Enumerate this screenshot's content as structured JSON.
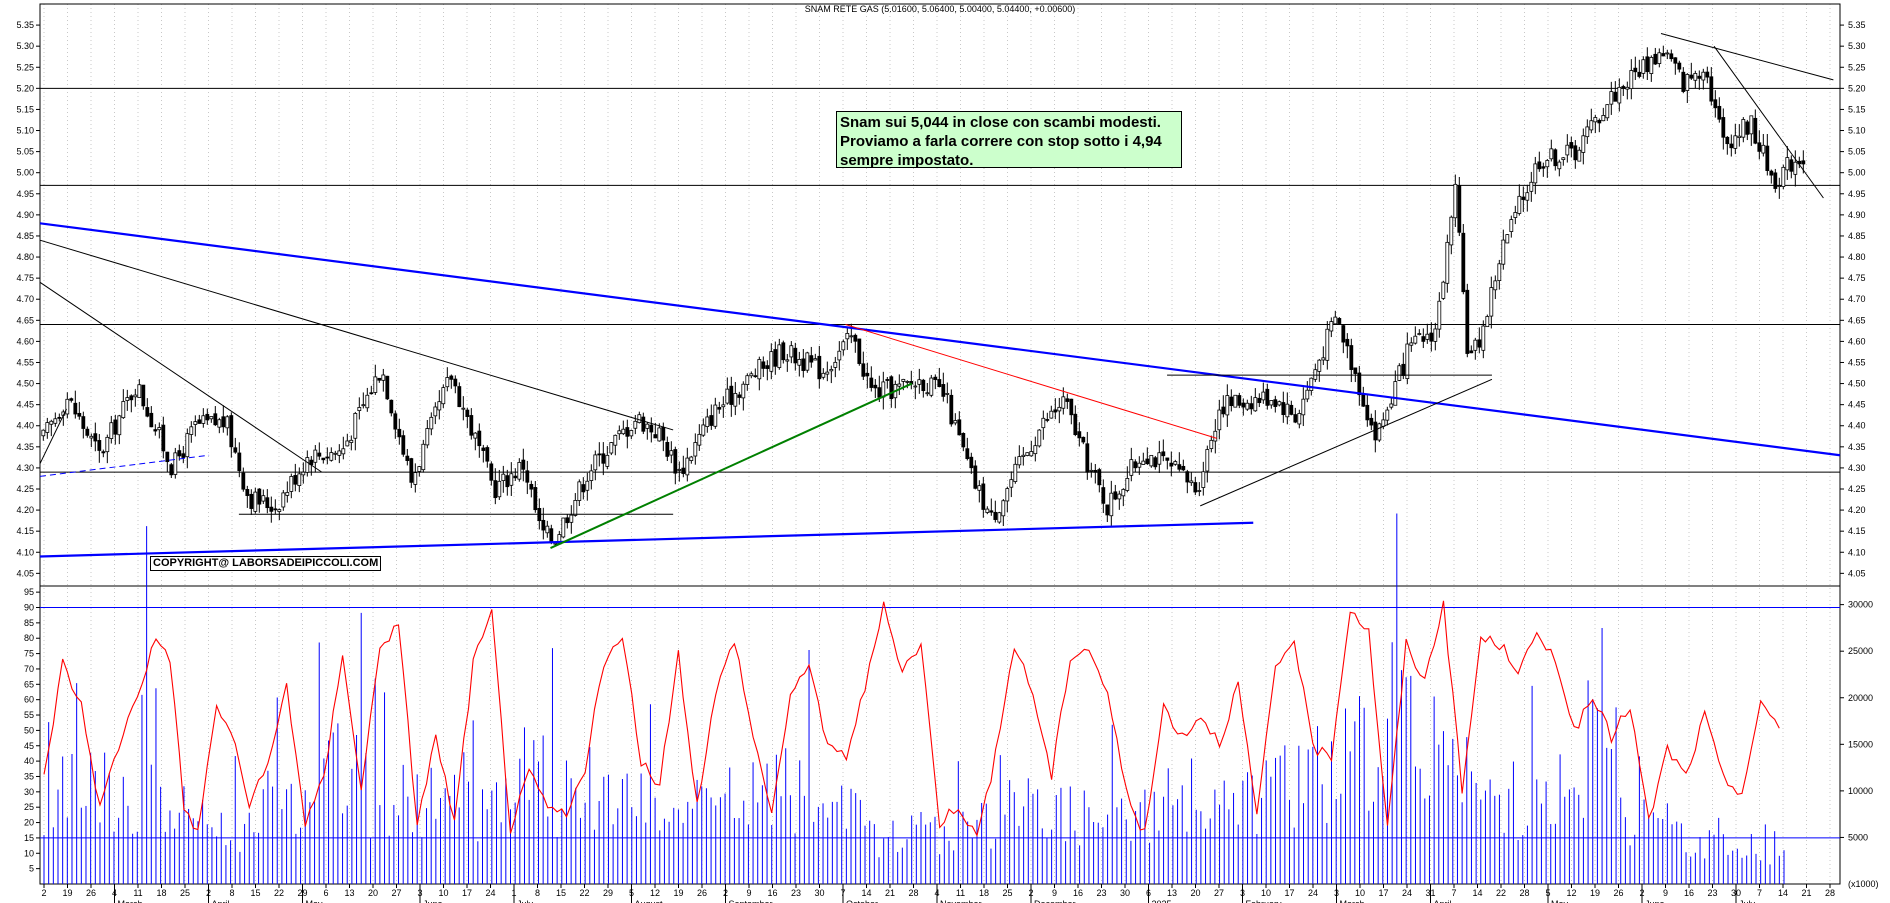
{
  "chart_data": [
    {
      "type": "candlestick",
      "title": "SNAM RETE GAS (5.01600, 5.06400, 5.00400, 5.04400, +0.00600)",
      "yticks": [
        "4.05",
        "4.10",
        "4.15",
        "4.20",
        "4.25",
        "4.30",
        "4.35",
        "4.40",
        "4.45",
        "4.50",
        "4.55",
        "4.60",
        "4.65",
        "4.70",
        "4.75",
        "4.80",
        "4.85",
        "4.90",
        "4.95",
        "5.00",
        "5.05",
        "5.10",
        "5.15",
        "5.20",
        "5.25",
        "5.30",
        "5.35"
      ],
      "ylim": [
        4.02,
        5.4
      ],
      "horizontal_levels": [
        5.2,
        4.97,
        4.64,
        4.29
      ],
      "annotation": [
        "Snam sui 5,044 in close con scambi modesti.",
        "Proviamo a farla correre con stop sotto i 4,94",
        "sempre impostato."
      ],
      "copyright": "COPYRIGHT@ LABORSADEIPICCOLI.COM",
      "price_path_anchors": [
        [
          "2024-02-02",
          4.37
        ],
        [
          "2024-02-09",
          4.47
        ],
        [
          "2024-02-19",
          4.33
        ],
        [
          "2024-03-01",
          4.5
        ],
        [
          "2024-03-12",
          4.3
        ],
        [
          "2024-03-19",
          4.4
        ],
        [
          "2024-03-28",
          4.41
        ],
        [
          "2024-04-04",
          4.23
        ],
        [
          "2024-04-12",
          4.21
        ],
        [
          "2024-04-22",
          4.33
        ],
        [
          "2024-05-02",
          4.34
        ],
        [
          "2024-05-14",
          4.54
        ],
        [
          "2024-05-23",
          4.27
        ],
        [
          "2024-06-04",
          4.52
        ],
        [
          "2024-06-17",
          4.25
        ],
        [
          "2024-06-26",
          4.31
        ],
        [
          "2024-07-01",
          4.15
        ],
        [
          "2024-07-05",
          4.13
        ],
        [
          "2024-07-16",
          4.3
        ],
        [
          "2024-07-30",
          4.42
        ],
        [
          "2024-08-06",
          4.38
        ],
        [
          "2024-08-12",
          4.29
        ],
        [
          "2024-08-22",
          4.43
        ],
        [
          "2024-09-03",
          4.52
        ],
        [
          "2024-09-12",
          4.58
        ],
        [
          "2024-09-24",
          4.53
        ],
        [
          "2024-10-03",
          4.61
        ],
        [
          "2024-10-09",
          4.48
        ],
        [
          "2024-10-18",
          4.49
        ],
        [
          "2024-10-24",
          4.51
        ],
        [
          "2024-10-31",
          4.47
        ],
        [
          "2024-11-08",
          4.28
        ],
        [
          "2024-11-14",
          4.18
        ],
        [
          "2024-11-20",
          4.27
        ],
        [
          "2024-11-29",
          4.4
        ],
        [
          "2024-12-06",
          4.46
        ],
        [
          "2024-12-13",
          4.31
        ],
        [
          "2024-12-19",
          4.21
        ],
        [
          "2024-12-30",
          4.34
        ],
        [
          "2025-01-09",
          4.29
        ],
        [
          "2025-01-15",
          4.25
        ],
        [
          "2025-01-22",
          4.45
        ],
        [
          "2025-01-30",
          4.46
        ],
        [
          "2025-02-07",
          4.47
        ],
        [
          "2025-02-14",
          4.42
        ],
        [
          "2025-02-26",
          4.66
        ],
        [
          "2025-03-04",
          4.52
        ],
        [
          "2025-03-10",
          4.37
        ],
        [
          "2025-03-20",
          4.58
        ],
        [
          "2025-03-28",
          4.63
        ],
        [
          "2025-04-03",
          4.95
        ],
        [
          "2025-04-07",
          4.55
        ],
        [
          "2025-04-11",
          4.62
        ],
        [
          "2025-04-17",
          4.82
        ],
        [
          "2025-04-28",
          5.03
        ],
        [
          "2025-05-09",
          5.05
        ],
        [
          "2025-05-20",
          5.18
        ],
        [
          "2025-05-29",
          5.25
        ],
        [
          "2025-06-05",
          5.29
        ],
        [
          "2025-06-11",
          5.21
        ],
        [
          "2025-06-17",
          5.26
        ],
        [
          "2025-06-23",
          5.07
        ],
        [
          "2025-07-01",
          5.12
        ],
        [
          "2025-07-08",
          4.98
        ],
        [
          "2025-07-14",
          5.03
        ],
        [
          "2025-07-17",
          5.04
        ]
      ],
      "trendlines": [
        {
          "color": "#0000ff",
          "from": [
            "2024-02-01",
            4.88
          ],
          "to": [
            "2025-07-28",
            4.33
          ]
        },
        {
          "color": "#0000ff",
          "from": [
            "2024-02-01",
            4.09
          ],
          "to": [
            "2025-02-01",
            4.17
          ]
        },
        {
          "color": "#000000",
          "from": [
            "2024-02-01",
            4.84
          ],
          "to": [
            "2024-08-10",
            4.39
          ]
        },
        {
          "color": "#000000",
          "from": [
            "2024-02-01",
            4.74
          ],
          "to": [
            "2024-04-26",
            4.29
          ]
        },
        {
          "color": "#000000",
          "from": [
            "2024-02-01",
            4.31
          ],
          "to": [
            "2024-02-09",
            4.44
          ]
        },
        {
          "color": "#0000ff",
          "dashed": true,
          "from": [
            "2024-02-01",
            4.28
          ],
          "to": [
            "2024-03-23",
            4.33
          ]
        },
        {
          "color": "#000000",
          "from": [
            "2024-04-01",
            4.19
          ],
          "to": [
            "2024-08-10",
            4.19
          ]
        },
        {
          "color": "#008000",
          "from": [
            "2024-07-04",
            4.11
          ],
          "to": [
            "2024-10-21",
            4.5
          ]
        },
        {
          "color": "#ff0000",
          "from": [
            "2024-10-01",
            4.64
          ],
          "to": [
            "2025-01-21",
            4.37
          ]
        },
        {
          "color": "#000000",
          "from": [
            "2025-01-06",
            4.52
          ],
          "to": [
            "2025-04-14",
            4.52
          ]
        },
        {
          "color": "#000000",
          "from": [
            "2025-01-16",
            4.21
          ],
          "to": [
            "2025-04-14",
            4.51
          ]
        },
        {
          "color": "#000000",
          "from": [
            "2025-06-04",
            5.33
          ],
          "to": [
            "2025-07-26",
            5.22
          ]
        },
        {
          "color": "#000000",
          "from": [
            "2025-06-20",
            5.3
          ],
          "to": [
            "2025-07-23",
            4.94
          ]
        }
      ]
    },
    {
      "type": "line+bar",
      "series": [
        {
          "name": "",
          "color": "#ff0000"
        },
        {
          "name": "",
          "color": "#0000ff"
        }
      ],
      "yticks_left": [
        "5",
        "10",
        "15",
        "20",
        "25",
        "30",
        "35",
        "40",
        "45",
        "50",
        "55",
        "60",
        "65",
        "70",
        "75",
        "80",
        "85",
        "90",
        "95"
      ],
      "ylim_left": [
        0,
        97
      ],
      "yticks_right": [
        "5000",
        "10000",
        "15000",
        "20000",
        "25000",
        "30000"
      ],
      "ylim_right": [
        0,
        32000
      ],
      "right_unit": "x1000",
      "horizontal_levels": [
        90,
        15
      ],
      "line_anchors": [
        [
          0,
          35
        ],
        [
          4,
          72
        ],
        [
          8,
          58
        ],
        [
          12,
          25
        ],
        [
          16,
          45
        ],
        [
          20,
          62
        ],
        [
          24,
          80
        ],
        [
          27,
          74
        ],
        [
          30,
          25
        ],
        [
          33,
          17
        ],
        [
          37,
          58
        ],
        [
          40,
          50
        ],
        [
          44,
          26
        ],
        [
          48,
          38
        ],
        [
          52,
          65
        ],
        [
          56,
          20
        ],
        [
          60,
          34
        ],
        [
          64,
          76
        ],
        [
          68,
          30
        ],
        [
          72,
          78
        ],
        [
          76,
          84
        ],
        [
          80,
          20
        ],
        [
          84,
          48
        ],
        [
          88,
          20
        ],
        [
          92,
          72
        ],
        [
          96,
          88
        ],
        [
          100,
          18
        ],
        [
          104,
          36
        ],
        [
          108,
          25
        ],
        [
          112,
          22
        ],
        [
          116,
          38
        ],
        [
          120,
          72
        ],
        [
          124,
          80
        ],
        [
          128,
          40
        ],
        [
          132,
          32
        ],
        [
          136,
          75
        ],
        [
          140,
          26
        ],
        [
          144,
          62
        ],
        [
          148,
          80
        ],
        [
          152,
          48
        ],
        [
          156,
          24
        ],
        [
          160,
          60
        ],
        [
          164,
          73
        ],
        [
          168,
          44
        ],
        [
          172,
          42
        ],
        [
          176,
          64
        ],
        [
          180,
          90
        ],
        [
          184,
          70
        ],
        [
          188,
          78
        ],
        [
          192,
          20
        ],
        [
          196,
          26
        ],
        [
          200,
          15
        ],
        [
          204,
          42
        ],
        [
          208,
          78
        ],
        [
          212,
          62
        ],
        [
          216,
          35
        ],
        [
          220,
          74
        ],
        [
          224,
          77
        ],
        [
          228,
          62
        ],
        [
          232,
          30
        ],
        [
          236,
          16
        ],
        [
          240,
          58
        ],
        [
          244,
          48
        ],
        [
          248,
          55
        ],
        [
          252,
          46
        ],
        [
          256,
          65
        ],
        [
          260,
          22
        ],
        [
          264,
          70
        ],
        [
          268,
          80
        ],
        [
          272,
          44
        ],
        [
          276,
          42
        ],
        [
          280,
          90
        ],
        [
          284,
          82
        ],
        [
          288,
          18
        ],
        [
          292,
          78
        ],
        [
          296,
          66
        ],
        [
          300,
          92
        ],
        [
          304,
          30
        ],
        [
          308,
          80
        ],
        [
          312,
          78
        ],
        [
          316,
          70
        ],
        [
          320,
          80
        ],
        [
          324,
          74
        ],
        [
          328,
          50
        ],
        [
          332,
          60
        ],
        [
          336,
          48
        ],
        [
          340,
          58
        ],
        [
          344,
          20
        ],
        [
          348,
          44
        ],
        [
          352,
          35
        ],
        [
          356,
          55
        ],
        [
          360,
          34
        ],
        [
          364,
          30
        ],
        [
          368,
          58
        ],
        [
          372,
          52
        ]
      ],
      "bar_envelope": [
        [
          0,
          9000
        ],
        [
          10,
          11000
        ],
        [
          20,
          9000
        ],
        [
          22,
          31000
        ],
        [
          24,
          9000
        ],
        [
          40,
          6000
        ],
        [
          50,
          8000
        ],
        [
          60,
          10000
        ],
        [
          64,
          15000
        ],
        [
          70,
          9000
        ],
        [
          80,
          10000
        ],
        [
          90,
          8000
        ],
        [
          100,
          9000
        ],
        [
          104,
          14000
        ],
        [
          110,
          10000
        ],
        [
          120,
          9000
        ],
        [
          140,
          8000
        ],
        [
          150,
          10000
        ],
        [
          160,
          11000
        ],
        [
          175,
          7000
        ],
        [
          180,
          5000
        ],
        [
          200,
          7000
        ],
        [
          210,
          9000
        ],
        [
          230,
          7000
        ],
        [
          240,
          9000
        ],
        [
          250,
          8000
        ],
        [
          270,
          12000
        ],
        [
          280,
          14000
        ],
        [
          290,
          18000
        ],
        [
          300,
          14000
        ],
        [
          310,
          10000
        ],
        [
          320,
          9000
        ],
        [
          330,
          8000
        ],
        [
          334,
          24000
        ],
        [
          340,
          7000
        ],
        [
          360,
          5000
        ],
        [
          372,
          3000
        ]
      ]
    }
  ],
  "x_axis": {
    "day_ticks": [
      "2",
      "19",
      "26",
      "4",
      "11",
      "18",
      "25",
      "2",
      "8",
      "15",
      "22",
      "29",
      "6",
      "13",
      "20",
      "27",
      "3",
      "10",
      "17",
      "24",
      "1",
      "8",
      "15",
      "22",
      "29",
      "5",
      "12",
      "19",
      "26",
      "2",
      "9",
      "16",
      "23",
      "30",
      "7",
      "14",
      "21",
      "28",
      "4",
      "11",
      "18",
      "25",
      "2",
      "9",
      "16",
      "23",
      "30",
      "6",
      "13",
      "20",
      "27",
      "3",
      "10",
      "17",
      "24",
      "3",
      "10",
      "17",
      "24",
      "31",
      "7",
      "14",
      "22",
      "28",
      "5",
      "12",
      "19",
      "26",
      "2",
      "9",
      "16",
      "23",
      "30",
      "7",
      "14",
      "21",
      "28"
    ],
    "month_labels": [
      "March",
      "April",
      "May",
      "June",
      "July",
      "August",
      "September",
      "October",
      "November",
      "December",
      "2025",
      "February",
      "March",
      "April",
      "May",
      "June",
      "July"
    ]
  }
}
